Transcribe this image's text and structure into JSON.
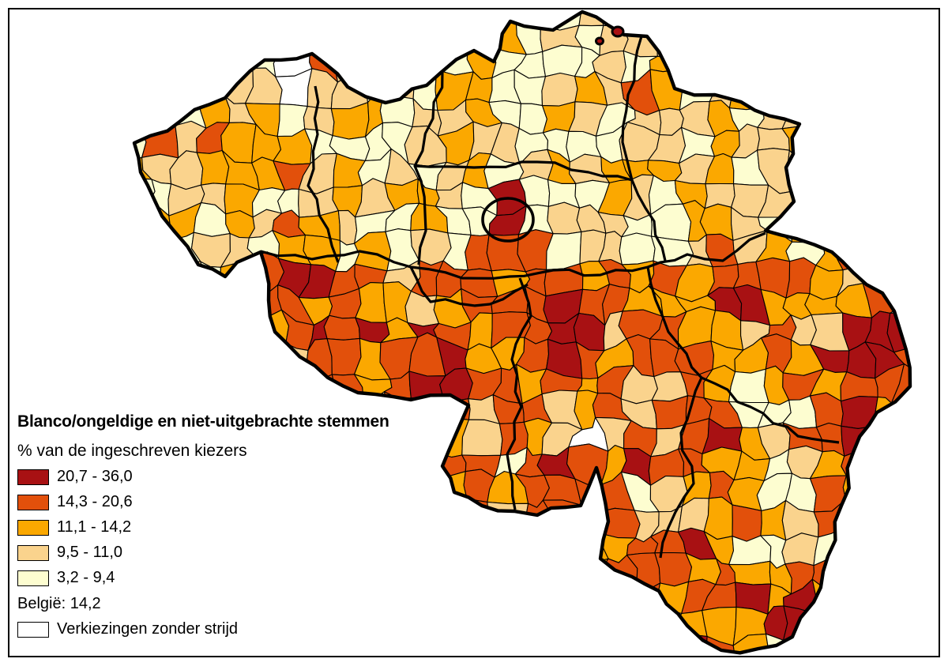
{
  "legend": {
    "title": "Blanco/ongeldige en niet-uitgebrachte stemmen",
    "subtitle": "% van de ingeschreven kiezers",
    "classes": [
      {
        "label": "20,7 - 36,0",
        "color": "#A81113"
      },
      {
        "label": "14,3 - 20,6",
        "color": "#E2500B"
      },
      {
        "label": "11,1 - 14,2",
        "color": "#FBA800"
      },
      {
        "label": "9,5 - 11,0",
        "color": "#FAD38D"
      },
      {
        "label": "3,2 - 9,4",
        "color": "#FDFDD0"
      }
    ],
    "country_note": "België: 14,2",
    "no_contest": {
      "label": "Verkiezingen zonder strijd",
      "color": "#FFFFFF"
    }
  },
  "map": {
    "region": "Belgium municipalities choropleth",
    "border_color": "#000000",
    "background": "#FFFFFF",
    "palette": {
      "darkred": "#A81113",
      "orangered": "#E2500B",
      "orange": "#FBA800",
      "peach": "#FAD38D",
      "pale": "#FDFDD0",
      "white": "#FFFFFF"
    }
  }
}
